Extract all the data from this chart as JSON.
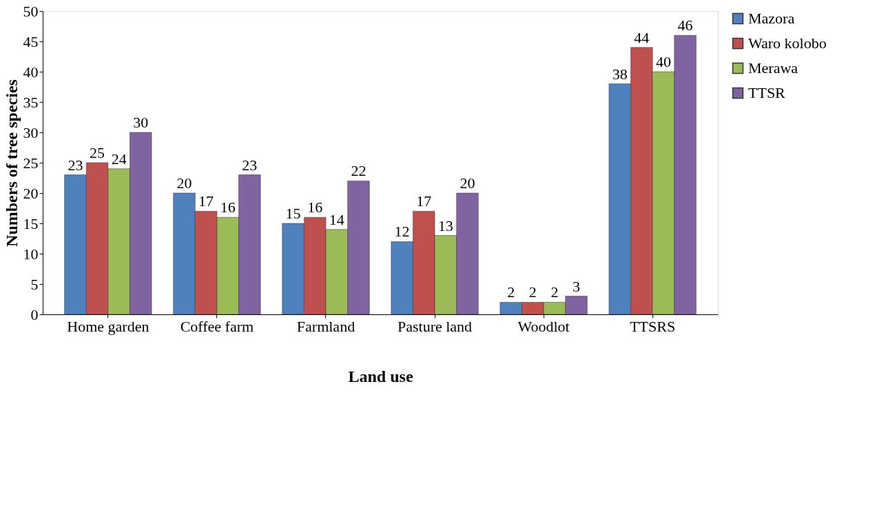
{
  "chart_data": {
    "type": "bar",
    "xlabel": "Land use",
    "ylabel": "Numbers of tree species",
    "categories": [
      "Home garden",
      "Coffee farm",
      "Farmland",
      "Pasture land",
      "Woodlot",
      "TTSRS"
    ],
    "series": [
      {
        "name": "Mazora",
        "color": "#4f81bd",
        "values": [
          23,
          20,
          15,
          12,
          2,
          38
        ]
      },
      {
        "name": "Waro kolobo",
        "color": "#c0504d",
        "values": [
          25,
          17,
          16,
          17,
          2,
          44
        ]
      },
      {
        "name": "Merawa",
        "color": "#9bbb59",
        "values": [
          24,
          16,
          14,
          13,
          2,
          40
        ]
      },
      {
        "name": "TTSR",
        "color": "#8064a2",
        "values": [
          30,
          23,
          22,
          20,
          3,
          46
        ]
      }
    ],
    "ylim": [
      0,
      50
    ],
    "yticks": [
      0,
      5,
      10,
      15,
      20,
      25,
      30,
      35,
      40,
      45,
      50
    ],
    "data_labels": true,
    "legend": "top right",
    "grid": false
  }
}
